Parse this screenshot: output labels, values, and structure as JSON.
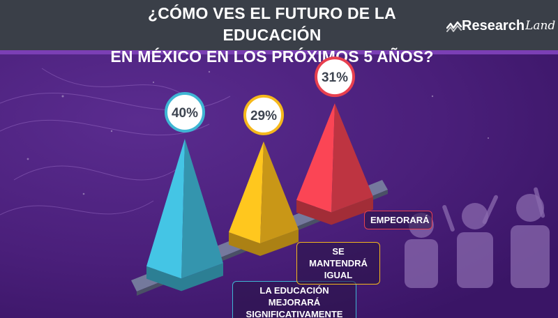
{
  "header": {
    "title_line1": "¿CÓMO VES EL FUTURO DE LA EDUCACIÓN",
    "title_line2": "EN MÉXICO EN LOS PRÓXIMOS 5 AÑOS?",
    "brand_main": "Research",
    "brand_script": "Land"
  },
  "colors": {
    "header_bg": "#3a3f48",
    "accent_stripe": "#7b3fb5",
    "background": "#4a1f7a",
    "bar_blue": "#3fb6d4",
    "bar_yellow": "#f5b81c",
    "bar_red": "#e8404f"
  },
  "chart_data": {
    "type": "bar",
    "categories": [
      "LA EDUCACIÓN MEJORARÁ SIGNIFICATIVAMENTE",
      "SE MANTENDRÁ IGUAL",
      "EMPEORARÁ"
    ],
    "values": [
      40,
      29,
      31
    ],
    "value_labels": [
      "40%",
      "29%",
      "31%"
    ],
    "unit": "%",
    "grid": false,
    "legend": "none"
  }
}
